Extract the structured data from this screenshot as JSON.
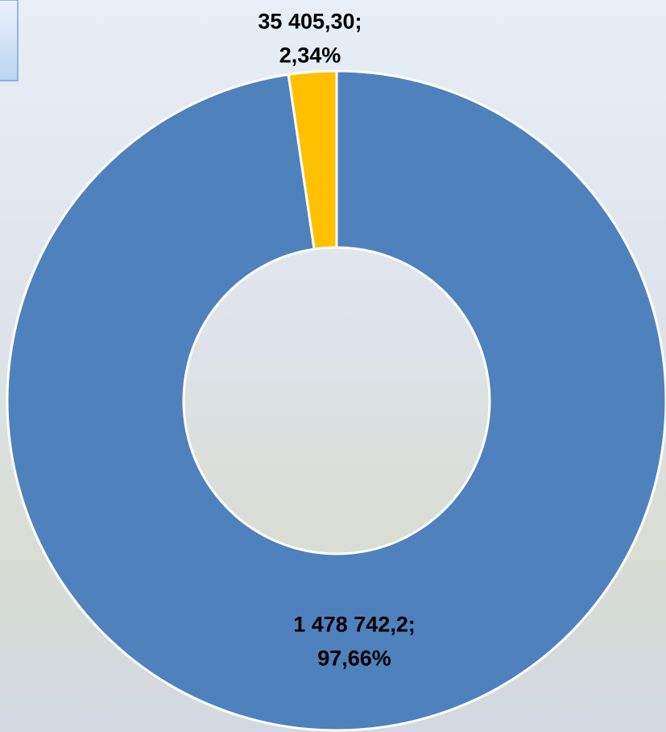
{
  "chart_data": {
    "type": "donut",
    "values": [
      1478742.2,
      35405.3
    ],
    "value_labels": [
      "1 478 742,2;",
      "35 405,30;"
    ],
    "percents": [
      97.66,
      2.34
    ],
    "percent_labels": [
      "97,66%",
      "2,34%"
    ],
    "colors": [
      "#4f81bd",
      "#ffc000"
    ]
  }
}
